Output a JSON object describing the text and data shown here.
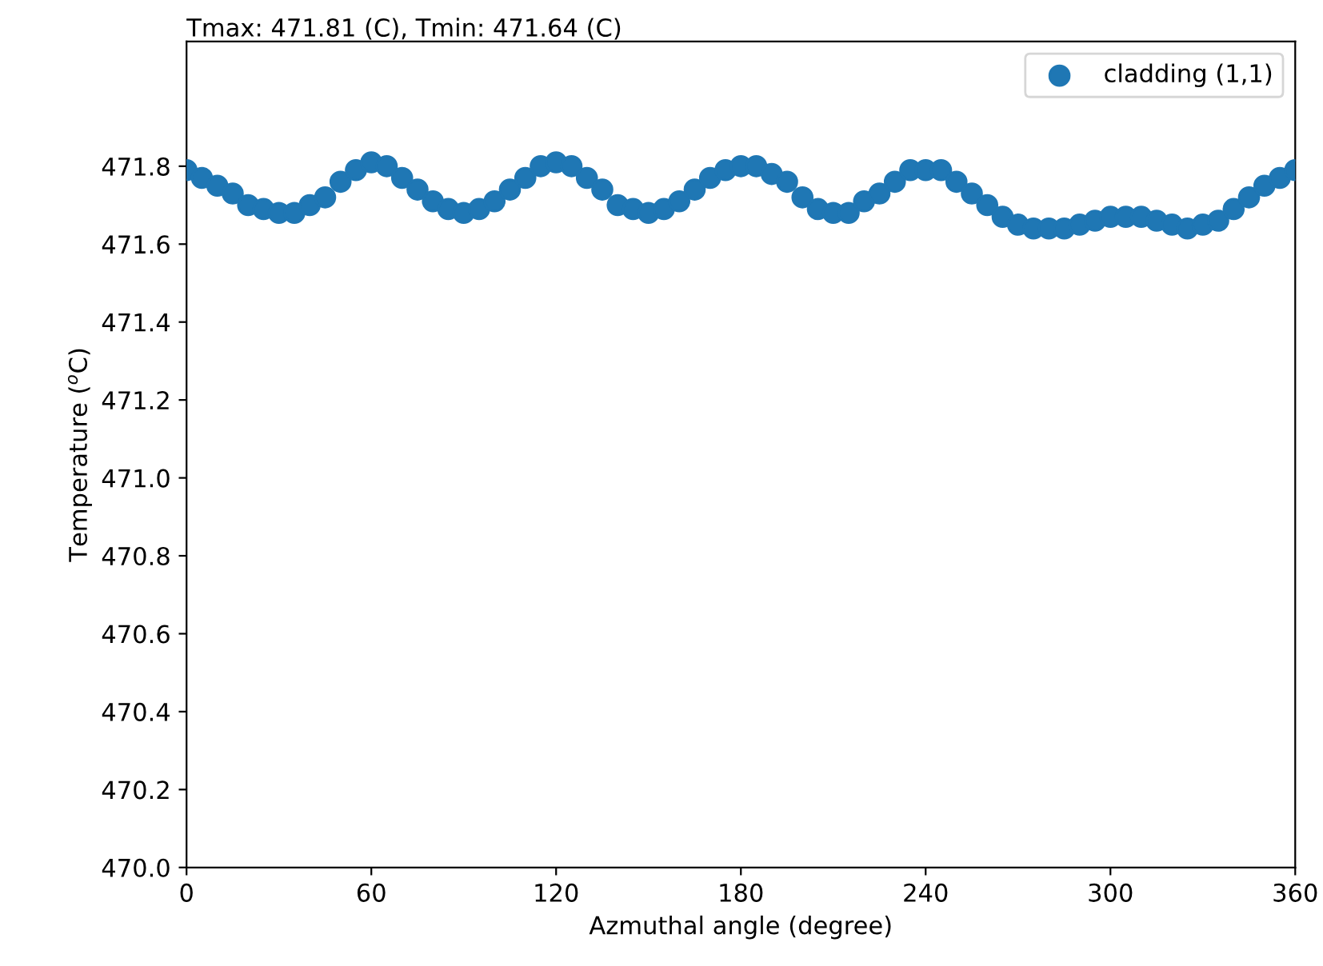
{
  "chart_data": {
    "type": "scatter",
    "title": "Tmax: 471.81 (C), Tmin: 471.64 (C)",
    "xlabel": "Azmuthal angle (degree)",
    "ylabel": "Temperature ($^{o}$C)",
    "x": [
      0,
      5,
      10,
      15,
      20,
      25,
      30,
      35,
      40,
      45,
      50,
      55,
      60,
      65,
      70,
      75,
      80,
      85,
      90,
      95,
      100,
      105,
      110,
      115,
      120,
      125,
      130,
      135,
      140,
      145,
      150,
      155,
      160,
      165,
      170,
      175,
      180,
      185,
      190,
      195,
      200,
      205,
      210,
      215,
      220,
      225,
      230,
      235,
      240,
      245,
      250,
      255,
      260,
      265,
      270,
      275,
      280,
      285,
      290,
      295,
      300,
      305,
      310,
      315,
      320,
      325,
      330,
      335,
      340,
      345,
      350,
      355,
      360
    ],
    "series": [
      {
        "name": "cladding (1,1)",
        "color": "#1f77b4",
        "values": [
          471.79,
          471.77,
          471.75,
          471.73,
          471.7,
          471.69,
          471.68,
          471.68,
          471.7,
          471.72,
          471.76,
          471.79,
          471.81,
          471.8,
          471.77,
          471.74,
          471.71,
          471.69,
          471.68,
          471.69,
          471.71,
          471.74,
          471.77,
          471.8,
          471.81,
          471.8,
          471.77,
          471.74,
          471.7,
          471.69,
          471.68,
          471.69,
          471.71,
          471.74,
          471.77,
          471.79,
          471.8,
          471.8,
          471.78,
          471.76,
          471.72,
          471.69,
          471.68,
          471.68,
          471.71,
          471.73,
          471.76,
          471.79,
          471.79,
          471.79,
          471.76,
          471.73,
          471.7,
          471.67,
          471.65,
          471.64,
          471.64,
          471.64,
          471.65,
          471.66,
          471.67,
          471.67,
          471.67,
          471.66,
          471.65,
          471.64,
          471.65,
          471.66,
          471.69,
          471.72,
          471.75,
          471.77,
          471.79
        ]
      }
    ],
    "xlim": [
      0,
      360
    ],
    "xticks": [
      0,
      60,
      120,
      180,
      240,
      300,
      360
    ],
    "ylim": [
      470.0,
      472.12
    ],
    "yticks": [
      {
        "value": 470.0,
        "label": "470.0"
      },
      {
        "value": 470.2,
        "label": "470.2"
      },
      {
        "value": 470.4,
        "label": "470.4"
      },
      {
        "value": 470.6,
        "label": "470.6"
      },
      {
        "value": 470.8,
        "label": "470.8"
      },
      {
        "value": 471.0,
        "label": "471.0"
      },
      {
        "value": 471.2,
        "label": "471.2"
      },
      {
        "value": 471.4,
        "label": "471.4"
      },
      {
        "value": 471.6,
        "label": "471.6"
      },
      {
        "value": 471.8,
        "label": "471.8"
      }
    ],
    "marker": "circle",
    "legend": "top right"
  }
}
